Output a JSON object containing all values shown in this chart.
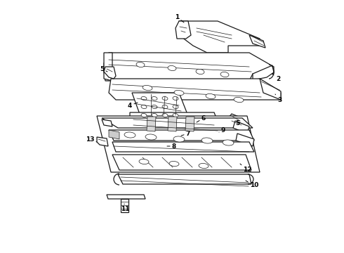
{
  "background_color": "#ffffff",
  "line_color": "#1a1a1a",
  "fig_width": 4.9,
  "fig_height": 3.6,
  "dpi": 100,
  "label_fontsize": 6.5,
  "lw_main": 0.9,
  "lw_detail": 0.5
}
